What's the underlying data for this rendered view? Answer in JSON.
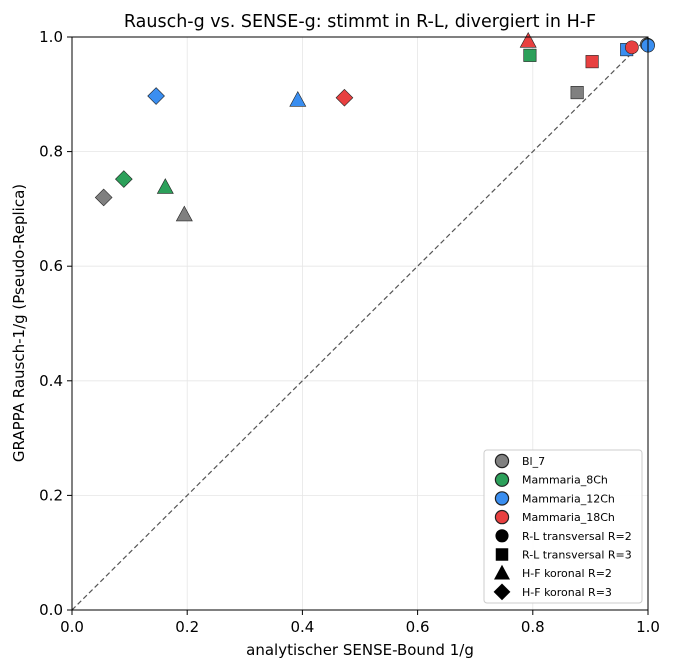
{
  "chart_data": {
    "type": "scatter",
    "title": "Rausch-g vs. SENSE-g: stimmt in R-L, divergiert in H-F",
    "xlabel": "analytischer SENSE-Bound 1/g",
    "ylabel": "GRAPPA Rausch-1/g (Pseudo-Replica)",
    "xlim": [
      0.0,
      1.0
    ],
    "ylim": [
      0.0,
      1.0
    ],
    "x_ticks": [
      "0.0",
      "0.2",
      "0.4",
      "0.6",
      "0.8",
      "1.0"
    ],
    "y_ticks": [
      "0.0",
      "0.2",
      "0.4",
      "0.6",
      "0.8",
      "1.0"
    ],
    "grid": true,
    "diagonal_reference": true,
    "legend_position": "lower right",
    "datasets": [
      {
        "name": "Bl_7",
        "color": "#808080"
      },
      {
        "name": "Mammaria_8Ch",
        "color": "#2ca05a"
      },
      {
        "name": "Mammaria_12Ch",
        "color": "#3a8ef0"
      },
      {
        "name": "Mammaria_18Ch",
        "color": "#e84040"
      }
    ],
    "configurations": [
      {
        "name": "R-L transversal R=2",
        "marker": "circle"
      },
      {
        "name": "R-L transversal R=3",
        "marker": "square"
      },
      {
        "name": "H-F koronal R=2",
        "marker": "triangle"
      },
      {
        "name": "H-F koronal R=3",
        "marker": "diamond"
      }
    ],
    "points": [
      {
        "dataset": 0,
        "config": 1,
        "x": 0.877,
        "y": 0.903
      },
      {
        "dataset": 0,
        "config": 3,
        "x": 0.055,
        "y": 0.72
      },
      {
        "dataset": 0,
        "config": 2,
        "x": 0.195,
        "y": 0.69
      },
      {
        "dataset": 0,
        "config": 0,
        "x": 0.998,
        "y": 0.987
      },
      {
        "dataset": 1,
        "config": 1,
        "x": 0.795,
        "y": 0.968
      },
      {
        "dataset": 1,
        "config": 3,
        "x": 0.09,
        "y": 0.752
      },
      {
        "dataset": 1,
        "config": 2,
        "x": 0.162,
        "y": 0.738
      },
      {
        "dataset": 1,
        "config": 0,
        "x": 1.0,
        "y": 0.986
      },
      {
        "dataset": 2,
        "config": 3,
        "x": 0.146,
        "y": 0.897
      },
      {
        "dataset": 2,
        "config": 2,
        "x": 0.392,
        "y": 0.89
      },
      {
        "dataset": 2,
        "config": 1,
        "x": 0.963,
        "y": 0.978
      },
      {
        "dataset": 2,
        "config": 0,
        "x": 1.0,
        "y": 0.985
      },
      {
        "dataset": 3,
        "config": 3,
        "x": 0.473,
        "y": 0.894
      },
      {
        "dataset": 3,
        "config": 2,
        "x": 0.792,
        "y": 0.993
      },
      {
        "dataset": 3,
        "config": 1,
        "x": 0.903,
        "y": 0.957
      },
      {
        "dataset": 3,
        "config": 0,
        "x": 0.972,
        "y": 0.982
      }
    ]
  }
}
